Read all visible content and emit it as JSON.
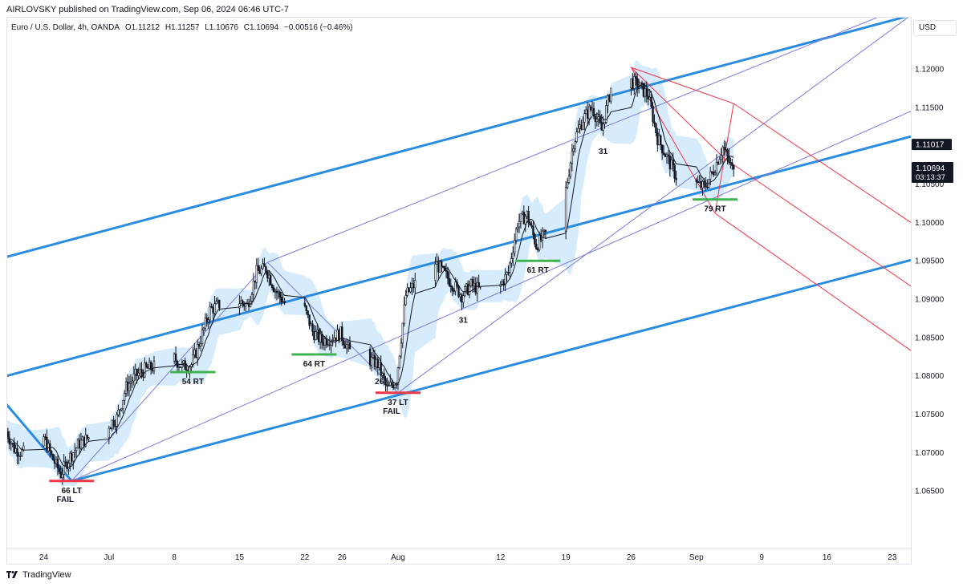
{
  "header": {
    "published": "AIRLOVSKY published on TradingView.com, Sep 06, 2024 06:46 UTC-7"
  },
  "symbol": {
    "name": "Euro / U.S. Dollar, 4h, OANDA",
    "open": "O1.11212",
    "high": "H1.11257",
    "low": "L1.10676",
    "close": "C1.10694",
    "change": "−0.00516 (−0.46%)"
  },
  "price_scale": {
    "currency": "USD"
  },
  "footer": {
    "brand": "TradingView",
    "logo_icon": "tradingview-logo-icon"
  },
  "colors": {
    "candle": "#131722",
    "trend_blue": "#2a8ce0",
    "channel_purple": "#7b7be0",
    "pitchfork_red": "#f23645",
    "cloud": "#d6ebfb",
    "ma": "#131722",
    "green_mark": "#3fb34f",
    "red_mark": "#f23645",
    "last_price_bg": "#131722",
    "crosshair_price_bg": "#131722"
  },
  "chart_data": {
    "type": "candlestick",
    "timeframe": "4h",
    "instrument": "EURUSD",
    "x_ticks": [
      {
        "label": "24",
        "date": "2024-06-24"
      },
      {
        "label": "Jul",
        "date": "2024-07-01"
      },
      {
        "label": "8",
        "date": "2024-07-08"
      },
      {
        "label": "15",
        "date": "2024-07-15"
      },
      {
        "label": "22",
        "date": "2024-07-22"
      },
      {
        "label": "26",
        "date": "2024-07-26"
      },
      {
        "label": "Aug",
        "date": "2024-08-01"
      },
      {
        "label": "12",
        "date": "2024-08-12"
      },
      {
        "label": "19",
        "date": "2024-08-19"
      },
      {
        "label": "26",
        "date": "2024-08-26"
      },
      {
        "label": "Sep",
        "date": "2024-09-02"
      },
      {
        "label": "9",
        "date": "2024-09-09"
      },
      {
        "label": "16",
        "date": "2024-09-16"
      },
      {
        "label": "23",
        "date": "2024-09-23"
      }
    ],
    "y_ticks": [
      "1.12000",
      "1.11500",
      "1.11000",
      "1.10500",
      "1.10000",
      "1.09500",
      "1.09000",
      "1.08500",
      "1.08000",
      "1.07500",
      "1.07000",
      "1.06500"
    ],
    "ylim": [
      1.0575,
      1.1268
    ],
    "xlim": [
      "2024-06-20",
      "2024-09-25"
    ],
    "last_price": {
      "value": "1.10694",
      "countdown": "03:13:37"
    },
    "marker_price": {
      "value": "1.11017"
    },
    "price_path": [
      [
        "2024-06-20",
        1.0732
      ],
      [
        "2024-06-21",
        1.0705
      ],
      [
        "2024-06-22",
        1.07
      ],
      [
        "2024-06-24",
        1.0725
      ],
      [
        "2024-06-25",
        1.0695
      ],
      [
        "2024-06-26",
        1.0672
      ],
      [
        "2024-06-27",
        1.0695
      ],
      [
        "2024-06-28",
        1.0712
      ],
      [
        "2024-07-01",
        1.0735
      ],
      [
        "2024-07-02",
        1.0745
      ],
      [
        "2024-07-03",
        1.0785
      ],
      [
        "2024-07-04",
        1.08
      ],
      [
        "2024-07-05",
        1.0808
      ],
      [
        "2024-07-06",
        1.0812
      ],
      [
        "2024-07-08",
        1.0825
      ],
      [
        "2024-07-09",
        1.0812
      ],
      [
        "2024-07-10",
        1.0815
      ],
      [
        "2024-07-11",
        1.0848
      ],
      [
        "2024-07-12",
        1.0886
      ],
      [
        "2024-07-13",
        1.0893
      ],
      [
        "2024-07-15",
        1.0898
      ],
      [
        "2024-07-16",
        1.0892
      ],
      [
        "2024-07-17",
        1.0935
      ],
      [
        "2024-07-18",
        1.094
      ],
      [
        "2024-07-19",
        1.0912
      ],
      [
        "2024-07-20",
        1.0895
      ],
      [
        "2024-07-22",
        1.0892
      ],
      [
        "2024-07-23",
        1.0858
      ],
      [
        "2024-07-24",
        1.0845
      ],
      [
        "2024-07-25",
        1.085
      ],
      [
        "2024-07-26",
        1.0855
      ],
      [
        "2024-07-27",
        1.0832
      ],
      [
        "2024-07-29",
        1.0822
      ],
      [
        "2024-07-30",
        1.0815
      ],
      [
        "2024-07-31",
        1.0782
      ],
      [
        "2024-08-01",
        1.0795
      ],
      [
        "2024-08-02",
        1.0905
      ],
      [
        "2024-08-03",
        1.092
      ],
      [
        "2024-08-05",
        1.095
      ],
      [
        "2024-08-06",
        1.0935
      ],
      [
        "2024-08-07",
        1.092
      ],
      [
        "2024-08-08",
        1.0905
      ],
      [
        "2024-08-09",
        1.0918
      ],
      [
        "2024-08-10",
        1.0912
      ],
      [
        "2024-08-12",
        1.0915
      ],
      [
        "2024-08-13",
        1.0935
      ],
      [
        "2024-08-14",
        1.1
      ],
      [
        "2024-08-15",
        1.101
      ],
      [
        "2024-08-16",
        1.097
      ],
      [
        "2024-08-17",
        1.0985
      ],
      [
        "2024-08-19",
        1.103
      ],
      [
        "2024-08-20",
        1.1105
      ],
      [
        "2024-08-21",
        1.1135
      ],
      [
        "2024-08-22",
        1.115
      ],
      [
        "2024-08-23",
        1.112
      ],
      [
        "2024-08-24",
        1.1175
      ],
      [
        "2024-08-26",
        1.1185
      ],
      [
        "2024-08-27",
        1.1178
      ],
      [
        "2024-08-28",
        1.1165
      ],
      [
        "2024-08-29",
        1.111
      ],
      [
        "2024-08-30",
        1.1085
      ],
      [
        "2024-08-31",
        1.106
      ],
      [
        "2024-09-02",
        1.1052
      ],
      [
        "2024-09-03",
        1.1045
      ],
      [
        "2024-09-04",
        1.1068
      ],
      [
        "2024-09-05",
        1.1098
      ],
      [
        "2024-09-06",
        1.10694
      ]
    ],
    "annotations": [
      {
        "text": "66 LT",
        "text2": "FAIL",
        "date": "2024-06-27",
        "price": 1.0663,
        "mark": "red"
      },
      {
        "text": "54 RT",
        "text2": "",
        "date": "2024-07-10",
        "price": 1.0805,
        "mark": "green"
      },
      {
        "text": "64 RT",
        "text2": "",
        "date": "2024-07-23",
        "price": 1.0828,
        "mark": "green"
      },
      {
        "text": "26",
        "text2": "",
        "date": "2024-07-30",
        "price": 1.0805,
        "mark": ""
      },
      {
        "text": "37 LT",
        "text2": "FAIL",
        "date": "2024-08-01",
        "price": 1.0778,
        "mark": "red"
      },
      {
        "text": "31",
        "text2": "",
        "date": "2024-08-08",
        "price": 1.0885,
        "mark": ""
      },
      {
        "text": "61 RT",
        "text2": "",
        "date": "2024-08-16",
        "price": 1.095,
        "mark": "green"
      },
      {
        "text": "31",
        "text2": "",
        "date": "2024-08-23",
        "price": 1.1105,
        "mark": ""
      },
      {
        "text": "79 RT",
        "text2": "",
        "date": "2024-09-04",
        "price": 1.103,
        "mark": "green"
      }
    ],
    "trend_lines": [
      {
        "color": "blue",
        "from": [
          "2024-06-20",
          1.0955
        ],
        "to": [
          "2024-09-25",
          1.127
        ]
      },
      {
        "color": "blue",
        "from": [
          "2024-06-20",
          1.08
        ],
        "to": [
          "2024-09-25",
          1.1112
        ]
      },
      {
        "color": "blue",
        "from": [
          "2024-06-27",
          1.0663
        ],
        "to": [
          "2024-09-25",
          1.0951
        ]
      },
      {
        "color": "blue",
        "from": [
          "2024-06-20",
          1.0763
        ],
        "to": [
          "2024-06-27",
          1.0663
        ]
      }
    ],
    "channel_lines": [
      {
        "from": [
          "2024-06-27",
          1.0663
        ],
        "to": [
          "2024-07-18",
          1.0948
        ]
      },
      {
        "from": [
          "2024-07-18",
          1.0948
        ],
        "to": [
          "2024-08-01",
          1.0778
        ]
      },
      {
        "from": [
          "2024-07-18",
          1.0948
        ],
        "to": [
          "2024-09-23",
          1.1275
        ]
      },
      {
        "from": [
          "2024-06-27",
          1.0663
        ],
        "to": [
          "2024-09-25",
          1.1145
        ]
      },
      {
        "from": [
          "2024-08-01",
          1.0778
        ],
        "to": [
          "2024-09-25",
          1.127
        ]
      }
    ],
    "pitchfork": {
      "pivot": [
        "2024-08-26",
        1.1202
      ],
      "a": [
        "2024-09-06",
        1.1155
      ],
      "b": [
        "2024-09-04",
        1.1012
      ],
      "end_upper": [
        "2024-09-25",
        1.1
      ],
      "end_median": [
        "2024-09-25",
        1.0917
      ],
      "end_lower": [
        "2024-09-25",
        1.0833
      ]
    }
  }
}
